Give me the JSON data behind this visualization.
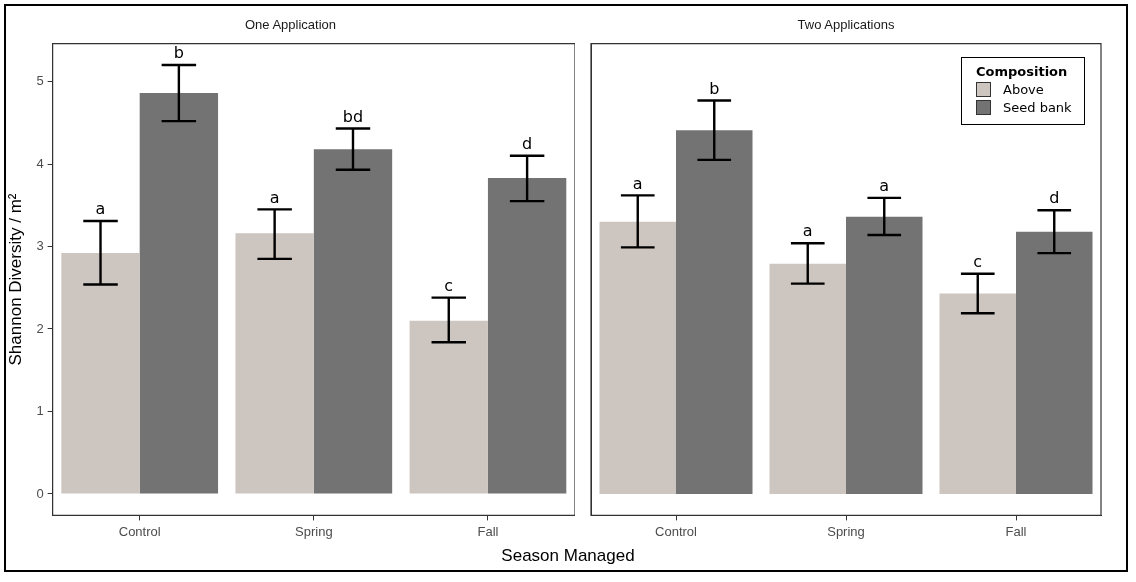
{
  "chart_data": [
    {
      "type": "bar",
      "title": "One Application",
      "xlabel": "Season Managed",
      "ylabel": "Shannon Diversity / m²",
      "categories": [
        "Control",
        "Spring",
        "Fall"
      ],
      "series": [
        {
          "color": "#cdc5c0",
          "values": [
            2.92,
            3.16,
            2.1
          ],
          "errors": [
            [
              2.54,
              3.31
            ],
            [
              2.85,
              3.45
            ],
            [
              1.84,
              2.38
            ]
          ],
          "value_labels": [
            "a",
            "a",
            "c"
          ]
        },
        {
          "color": "#737373",
          "values": [
            4.86,
            4.18,
            3.83
          ],
          "errors": [
            [
              4.52,
              5.2
            ],
            [
              3.93,
              4.43
            ],
            [
              3.55,
              4.1
            ]
          ],
          "value_labels": [
            "b",
            "bd",
            "d"
          ]
        }
      ],
      "ylim": [
        -0.26,
        5.46
      ],
      "yticks": [
        0,
        1,
        2,
        3,
        4,
        5
      ],
      "grid": false,
      "legend": false
    },
    {
      "type": "bar",
      "title": "Two Applications",
      "legend_title": "Composition",
      "categories": [
        "Control",
        "Spring",
        "Fall"
      ],
      "series": [
        {
          "name": "Above",
          "color": "#cdc5c0",
          "values": [
            3.3,
            2.79,
            2.43
          ],
          "errors": [
            [
              2.99,
              3.62
            ],
            [
              2.55,
              3.04
            ],
            [
              2.19,
              2.67
            ]
          ],
          "value_labels": [
            "a",
            "a",
            "c"
          ]
        },
        {
          "name": "Seed bank",
          "color": "#737373",
          "values": [
            4.41,
            3.36,
            3.18
          ],
          "errors": [
            [
              4.05,
              4.77
            ],
            [
              3.14,
              3.59
            ],
            [
              2.92,
              3.44
            ]
          ],
          "value_labels": [
            "b",
            "a",
            "d"
          ]
        }
      ],
      "ylim": [
        -0.26,
        5.46
      ],
      "yticks": [
        0,
        1,
        2,
        3,
        4,
        5
      ],
      "grid": false,
      "legend": "top right",
      "tick_labels": "x"
    }
  ]
}
